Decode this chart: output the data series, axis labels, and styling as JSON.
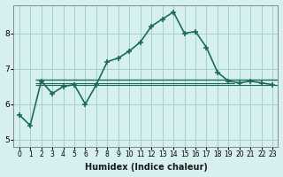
{
  "xlabel": "Humidex (Indice chaleur)",
  "x": [
    0,
    1,
    2,
    3,
    4,
    5,
    6,
    7,
    8,
    9,
    10,
    11,
    12,
    13,
    14,
    15,
    16,
    17,
    18,
    19,
    20,
    21,
    22,
    23
  ],
  "y": [
    5.7,
    5.4,
    6.65,
    6.3,
    6.5,
    6.55,
    6.0,
    6.55,
    7.2,
    7.3,
    7.5,
    7.75,
    8.2,
    8.4,
    8.6,
    8.0,
    8.05,
    7.6,
    6.9,
    6.65,
    6.6,
    6.65,
    6.6,
    6.55
  ],
  "line_color": "#1a6b5a",
  "bg_color": "#d6f0f0",
  "grid_color": "#a0d0d0",
  "ylim": [
    4.8,
    8.8
  ],
  "xlim": [
    -0.5,
    23.5
  ],
  "hline1_y": 6.68,
  "hline2_y": 6.55,
  "hline3_y": 6.6,
  "hline_color": "#1a6b5a",
  "marker": "+",
  "marker_size": 5,
  "line_width": 1.2,
  "yticks": [
    5,
    6,
    7,
    8
  ],
  "xtick_labels": [
    "0",
    "1",
    "2",
    "3",
    "4",
    "5",
    "6",
    "7",
    "8",
    "9",
    "10",
    "11",
    "12",
    "13",
    "14",
    "15",
    "16",
    "17",
    "18",
    "19",
    "20",
    "21",
    "22",
    "23"
  ]
}
